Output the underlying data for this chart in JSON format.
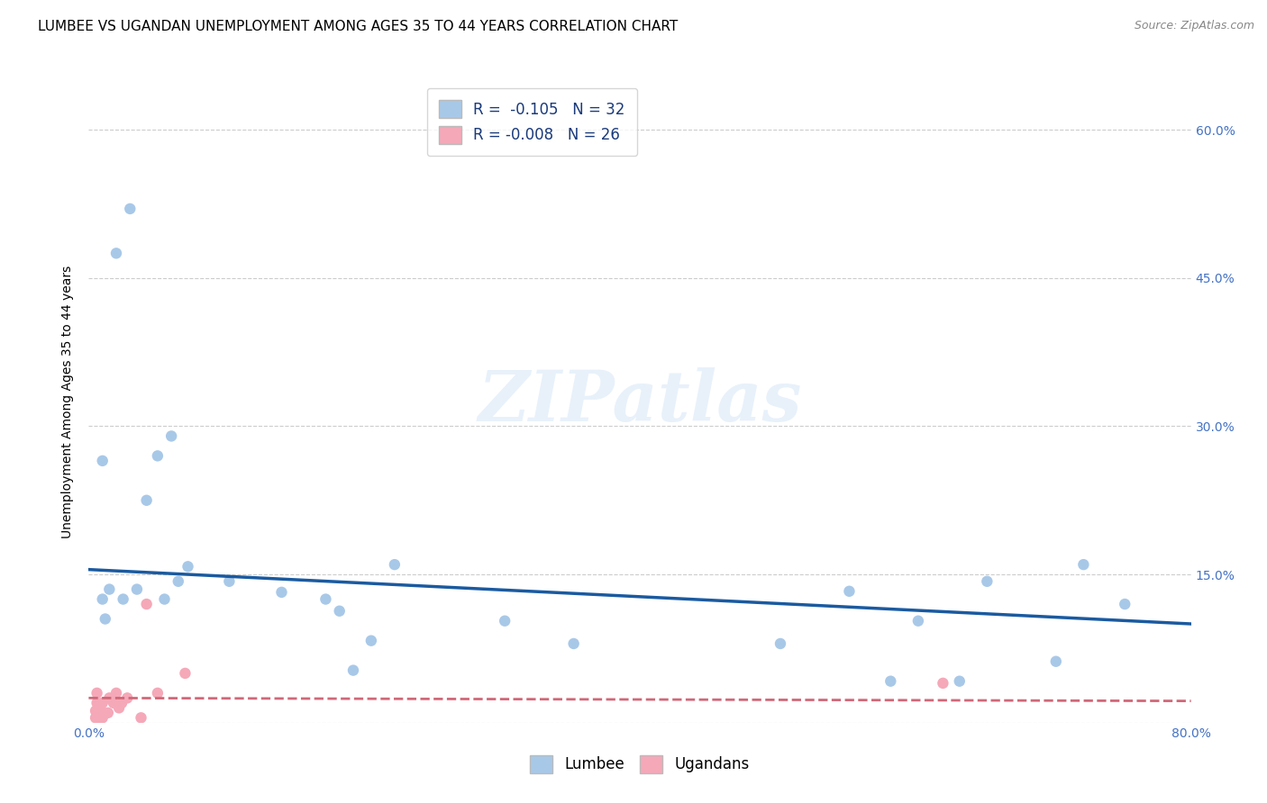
{
  "title": "LUMBEE VS UGANDAN UNEMPLOYMENT AMONG AGES 35 TO 44 YEARS CORRELATION CHART",
  "source": "Source: ZipAtlas.com",
  "ylabel": "Unemployment Among Ages 35 to 44 years",
  "xlim": [
    0.0,
    0.8
  ],
  "ylim": [
    0.0,
    0.65
  ],
  "watermark": "ZIPatlas",
  "lumbee_R": "-0.105",
  "lumbee_N": "32",
  "ugandan_R": "-0.008",
  "ugandan_N": "26",
  "lumbee_color": "#a8c8e8",
  "lumbee_line_color": "#1a5aa0",
  "ugandan_color": "#f5a8b8",
  "ugandan_line_color": "#d06878",
  "lumbee_scatter_x": [
    0.02,
    0.03,
    0.05,
    0.055,
    0.01,
    0.01,
    0.012,
    0.015,
    0.025,
    0.035,
    0.042,
    0.06,
    0.065,
    0.072,
    0.102,
    0.14,
    0.172,
    0.182,
    0.192,
    0.205,
    0.222,
    0.302,
    0.352,
    0.502,
    0.552,
    0.582,
    0.602,
    0.632,
    0.652,
    0.702,
    0.722,
    0.752
  ],
  "lumbee_scatter_y": [
    0.475,
    0.52,
    0.27,
    0.125,
    0.265,
    0.125,
    0.105,
    0.135,
    0.125,
    0.135,
    0.225,
    0.29,
    0.143,
    0.158,
    0.143,
    0.132,
    0.125,
    0.113,
    0.053,
    0.083,
    0.16,
    0.103,
    0.08,
    0.08,
    0.133,
    0.042,
    0.103,
    0.042,
    0.143,
    0.062,
    0.16,
    0.12
  ],
  "ugandan_scatter_x": [
    0.005,
    0.005,
    0.006,
    0.006,
    0.007,
    0.007,
    0.007,
    0.008,
    0.008,
    0.009,
    0.009,
    0.01,
    0.01,
    0.01,
    0.014,
    0.015,
    0.018,
    0.02,
    0.022,
    0.024,
    0.028,
    0.038,
    0.042,
    0.05,
    0.07,
    0.62
  ],
  "ugandan_scatter_y": [
    0.005,
    0.012,
    0.02,
    0.03,
    0.005,
    0.008,
    0.012,
    0.005,
    0.01,
    0.005,
    0.012,
    0.005,
    0.01,
    0.02,
    0.01,
    0.025,
    0.02,
    0.03,
    0.015,
    0.02,
    0.025,
    0.005,
    0.12,
    0.03,
    0.05,
    0.04
  ],
  "lumbee_trendline_x": [
    0.0,
    0.8
  ],
  "lumbee_trendline_y": [
    0.155,
    0.1
  ],
  "ugandan_trendline_x": [
    0.0,
    0.8
  ],
  "ugandan_trendline_y": [
    0.025,
    0.022
  ],
  "ytick_positions": [
    0.0,
    0.15,
    0.3,
    0.45,
    0.6
  ],
  "xtick_positions": [
    0.0,
    0.1,
    0.2,
    0.3,
    0.4,
    0.5,
    0.6,
    0.7,
    0.8
  ],
  "grid_color": "#cccccc",
  "background_color": "#ffffff",
  "title_fontsize": 11,
  "ylabel_fontsize": 10,
  "tick_fontsize": 10,
  "scatter_size": 80
}
